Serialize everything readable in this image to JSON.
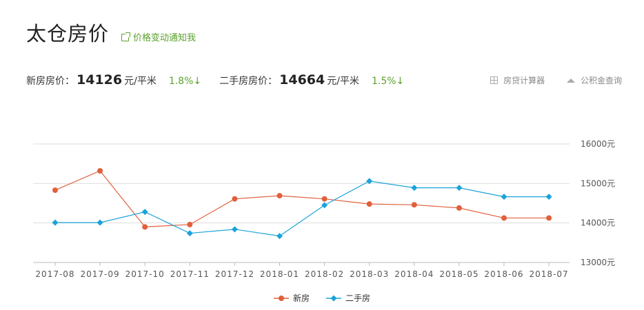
{
  "header": {
    "title": "太仓房价",
    "notify_label": "价格变动通知我"
  },
  "stats": {
    "new_label": "新房房价：",
    "new_price": "14126",
    "new_unit": "元/平米",
    "new_change": "1.8%↓",
    "used_label": "二手房房价：",
    "used_price": "14664",
    "used_unit": "元/平米",
    "used_change": "1.5%↓"
  },
  "tools": {
    "calc_label": "房贷计算器",
    "fund_label": "公积金查询"
  },
  "chart_data": {
    "type": "line",
    "x": [
      "2017-08",
      "2017-09",
      "2017-10",
      "2017-11",
      "2017-12",
      "2018-01",
      "2018-02",
      "2018-03",
      "2018-04",
      "2018-05",
      "2018-06",
      "2018-07"
    ],
    "series": [
      {
        "name": "新房",
        "color": "#e0603c",
        "values": [
          14830,
          15320,
          13900,
          13960,
          14610,
          14690,
          14610,
          14480,
          14460,
          14380,
          14126,
          14126
        ]
      },
      {
        "name": "二手房",
        "color": "#1aa3d9",
        "values": [
          14010,
          14010,
          14280,
          13740,
          13840,
          13670,
          14450,
          15060,
          14890,
          14890,
          14664,
          14664
        ]
      }
    ],
    "ylim": [
      13000,
      16000
    ],
    "yticks": [
      "13000元",
      "14000元",
      "15000元",
      "16000元"
    ],
    "grid": true,
    "legend": "bottom-center"
  }
}
